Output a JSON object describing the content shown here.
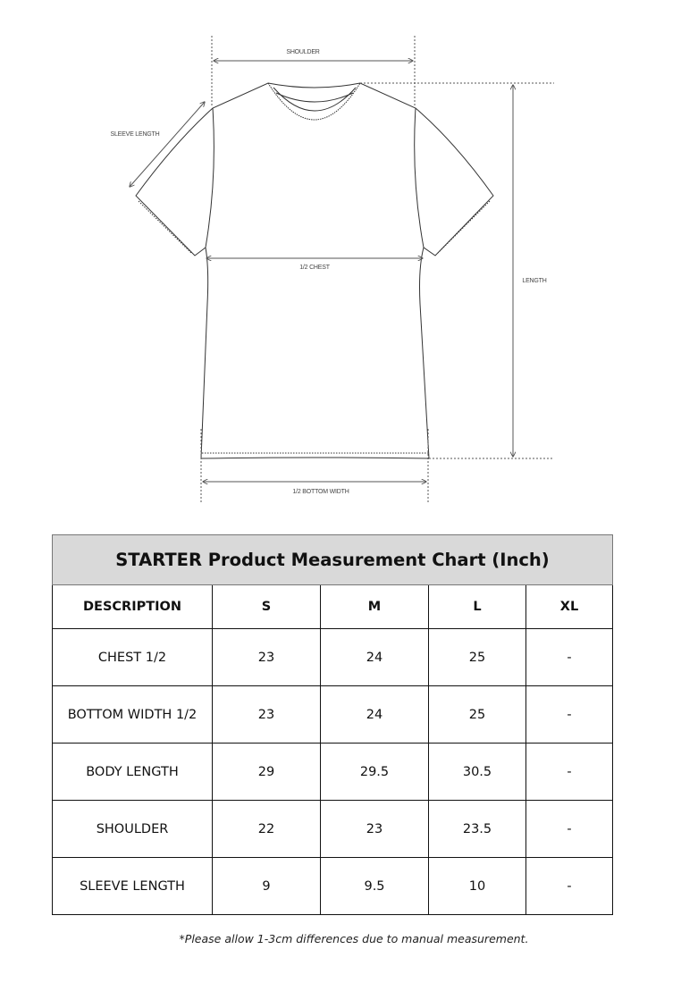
{
  "diagram": {
    "labels": {
      "shoulder": "SHOULDER",
      "sleeve_length": "SLEEVE LENGTH",
      "chest": "1/2 CHEST",
      "length": "LENGTH",
      "bottom_width": "1/2 BOTTOM WIDTH"
    }
  },
  "table": {
    "title": "STARTER Product Measurement Chart (Inch)",
    "header_fill": "#d9d9d9",
    "columns": [
      "DESCRIPTION",
      "S",
      "M",
      "L",
      "XL"
    ],
    "rows": [
      [
        "CHEST 1/2",
        "23",
        "24",
        "25",
        "-"
      ],
      [
        "BOTTOM WIDTH 1/2",
        "23",
        "24",
        "25",
        "-"
      ],
      [
        "BODY LENGTH",
        "29",
        "29.5",
        "30.5",
        "-"
      ],
      [
        "SHOULDER",
        "22",
        "23",
        "23.5",
        "-"
      ],
      [
        "SLEEVE LENGTH",
        "9",
        "9.5",
        "10",
        "-"
      ]
    ]
  },
  "note": "*Please allow 1-3cm differences due to manual measurement."
}
